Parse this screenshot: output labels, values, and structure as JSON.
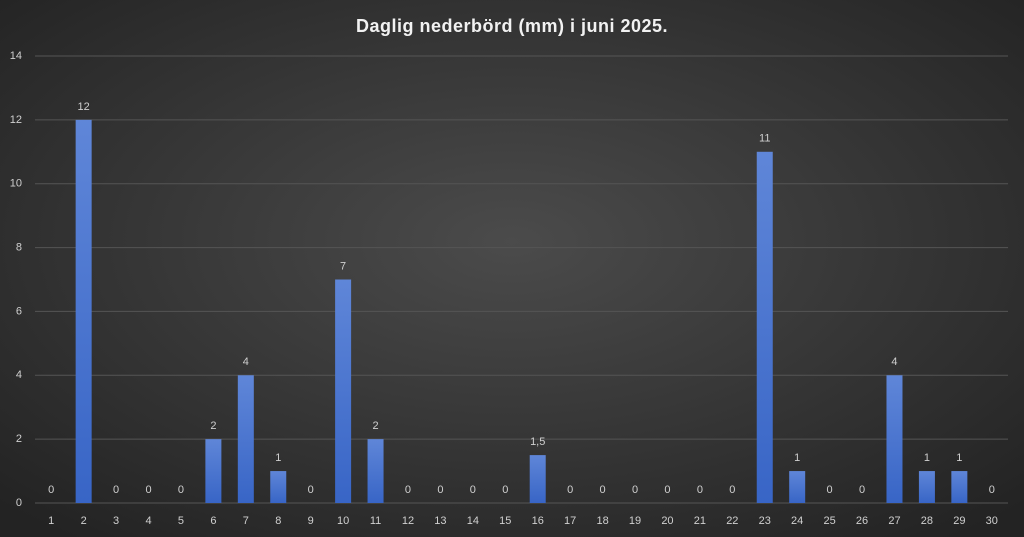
{
  "chart_data": {
    "type": "bar",
    "title": "Daglig nederbörd (mm) i juni 2025.",
    "categories": [
      "1",
      "2",
      "3",
      "4",
      "5",
      "6",
      "7",
      "8",
      "9",
      "10",
      "11",
      "12",
      "13",
      "14",
      "15",
      "16",
      "17",
      "18",
      "19",
      "20",
      "21",
      "22",
      "23",
      "24",
      "25",
      "26",
      "27",
      "28",
      "29",
      "30"
    ],
    "values": [
      0,
      12,
      0,
      0,
      0,
      2,
      4,
      1,
      0,
      7,
      2,
      0,
      0,
      0,
      0,
      1.5,
      0,
      0,
      0,
      0,
      0,
      0,
      11,
      1,
      0,
      0,
      4,
      1,
      1,
      0
    ],
    "value_labels": [
      "0",
      "12",
      "0",
      "0",
      "0",
      "2",
      "4",
      "1",
      "0",
      "7",
      "2",
      "0",
      "0",
      "0",
      "0",
      "1,5",
      "0",
      "0",
      "0",
      "0",
      "0",
      "0",
      "11",
      "1",
      "0",
      "0",
      "4",
      "1",
      "1",
      "0"
    ],
    "color": "#4472c4",
    "ylim": [
      0,
      14
    ],
    "yticks": [
      0,
      2,
      4,
      6,
      8,
      10,
      12,
      14
    ],
    "grid": true
  }
}
